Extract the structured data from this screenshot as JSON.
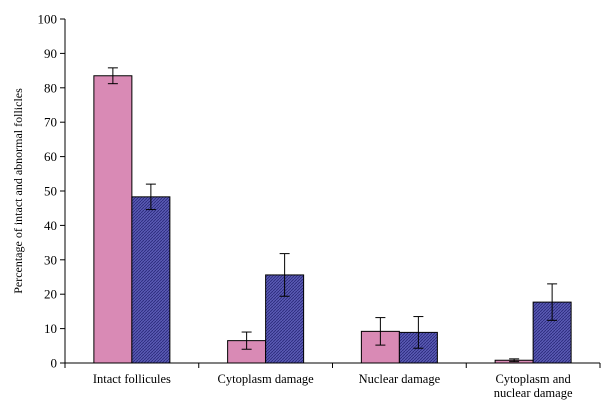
{
  "chart_data": {
    "type": "bar",
    "title": "",
    "xlabel": "",
    "ylabel": "Percentage of intact and abnormal follicles",
    "ylim": [
      0,
      100
    ],
    "yticks": [
      0,
      10,
      20,
      30,
      40,
      50,
      60,
      70,
      80,
      90,
      100
    ],
    "grid": false,
    "legend": "none",
    "categories": [
      [
        "Intact follicules"
      ],
      [
        "Cytoplasm damage"
      ],
      [
        "Nuclear damage"
      ],
      [
        "Cytoplasm and",
        "nuclear damage"
      ]
    ],
    "series": [
      {
        "color": "#d98ab5",
        "pattern": "solid",
        "values": [
          83.5,
          6.5,
          9.2,
          0.8
        ],
        "errors": [
          2.3,
          2.5,
          4.0,
          0.4
        ]
      },
      {
        "color": "#4e4ea6",
        "pattern": "hatched",
        "values": [
          48.3,
          25.6,
          8.9,
          17.7
        ],
        "errors": [
          3.7,
          6.2,
          4.6,
          5.3
        ]
      }
    ]
  }
}
